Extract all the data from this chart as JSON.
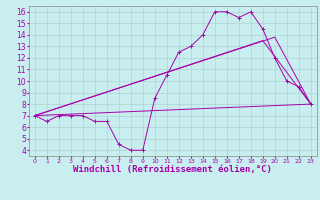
{
  "xlabel": "Windchill (Refroidissement éolien,°C)",
  "bg_color": "#c8eef0",
  "grid_color": "#aacccc",
  "line_color": "#aa00aa",
  "xlim": [
    -0.5,
    23.5
  ],
  "ylim": [
    3.5,
    16.5
  ],
  "yticks": [
    4,
    5,
    6,
    7,
    8,
    9,
    10,
    11,
    12,
    13,
    14,
    15,
    16
  ],
  "xticks": [
    0,
    1,
    2,
    3,
    4,
    5,
    6,
    7,
    8,
    9,
    10,
    11,
    12,
    13,
    14,
    15,
    16,
    17,
    18,
    19,
    20,
    21,
    22,
    23
  ],
  "line1_x": [
    0,
    1,
    2,
    3,
    4,
    5,
    6,
    7,
    8,
    9,
    10,
    11,
    12,
    13,
    14,
    15,
    16,
    17,
    18,
    19,
    20,
    21,
    22,
    23
  ],
  "line1_y": [
    7.0,
    6.5,
    7.0,
    7.0,
    7.0,
    6.5,
    6.5,
    4.5,
    4.0,
    4.0,
    8.5,
    10.5,
    12.5,
    13.0,
    14.0,
    16.0,
    16.0,
    15.5,
    16.0,
    14.5,
    12.0,
    10.0,
    9.5,
    8.0
  ],
  "line2_x": [
    0,
    23
  ],
  "line2_y": [
    7.0,
    8.0
  ],
  "line3_x": [
    0,
    19,
    23
  ],
  "line3_y": [
    7.0,
    13.5,
    8.0
  ],
  "line4_x": [
    0,
    20,
    23
  ],
  "line4_y": [
    7.0,
    13.8,
    8.0
  ],
  "xlabel_fontsize": 6.5,
  "tick_fontsize": 5.5
}
